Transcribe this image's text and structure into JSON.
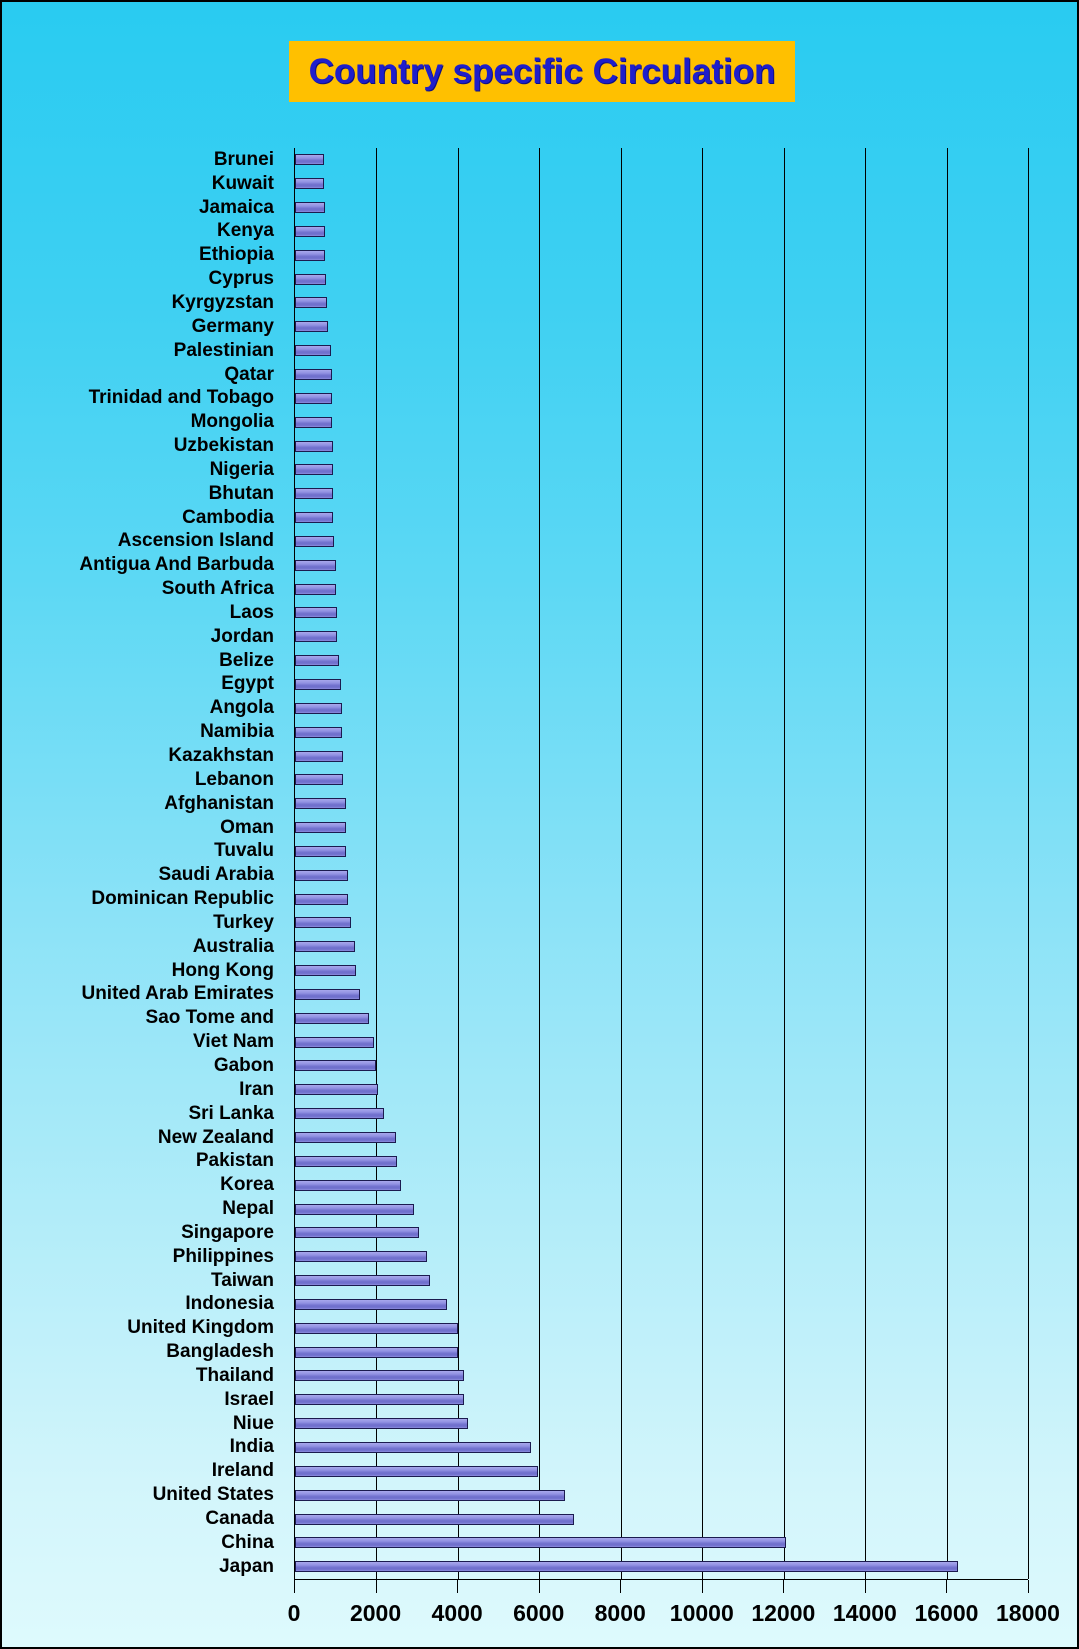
{
  "title": {
    "text": "Country specific Circulation"
  },
  "colors": {
    "background_top": "#29cbf1",
    "background_bottom": "#defafd",
    "title_background": "#ffc000",
    "title_text": "#1e1ecb",
    "bar_fill": "#8585da",
    "bar_border": "#1b1b4f",
    "gridline": "#000000",
    "label_text": "#000000"
  },
  "chart_data": {
    "type": "bar",
    "orientation": "horizontal",
    "title": "Country specific Circulation",
    "xlabel": "",
    "ylabel": "",
    "xlim": [
      0,
      18000
    ],
    "x_ticks": [
      0,
      2000,
      4000,
      6000,
      8000,
      10000,
      12000,
      14000,
      16000,
      18000
    ],
    "grid": "vertical",
    "legend": "none",
    "categories": [
      "Brunei",
      "Kuwait",
      "Jamaica",
      "Kenya",
      "Ethiopia",
      "Cyprus",
      "Kyrgyzstan",
      "Germany",
      "Palestinian",
      "Qatar",
      "Trinidad and Tobago",
      "Mongolia",
      "Uzbekistan",
      "Nigeria",
      "Bhutan",
      "Cambodia",
      "Ascension Island",
      "Antigua And Barbuda",
      "South Africa",
      "Laos",
      "Jordan",
      "Belize",
      "Egypt",
      "Angola",
      "Namibia",
      "Kazakhstan",
      "Lebanon",
      "Afghanistan",
      "Oman",
      "Tuvalu",
      "Saudi Arabia",
      "Dominican Republic",
      "Turkey",
      "Australia",
      "Hong Kong",
      "United Arab Emirates",
      "Sao Tome and",
      "Viet Nam",
      "Gabon",
      "Iran",
      "Sri Lanka",
      "New Zealand",
      "Pakistan",
      "Korea",
      "Nepal",
      "Singapore",
      "Philippines",
      "Taiwan",
      "Indonesia",
      "United Kingdom",
      "Bangladesh",
      "Thailand",
      "Israel",
      "Niue",
      "India",
      "Ireland",
      "United States",
      "Canada",
      "China",
      "Japan"
    ],
    "values": [
      700,
      720,
      725,
      740,
      745,
      765,
      785,
      810,
      895,
      900,
      910,
      915,
      925,
      930,
      940,
      945,
      965,
      1015,
      1015,
      1030,
      1035,
      1080,
      1125,
      1155,
      1155,
      1180,
      1190,
      1245,
      1245,
      1260,
      1300,
      1290,
      1385,
      1470,
      1510,
      1590,
      1810,
      1935,
      1985,
      2050,
      2190,
      2490,
      2510,
      2615,
      2920,
      3035,
      3230,
      3315,
      3730,
      4000,
      4015,
      4160,
      4140,
      4250,
      5800,
      5970,
      6630,
      6860,
      12050,
      16290
    ]
  }
}
